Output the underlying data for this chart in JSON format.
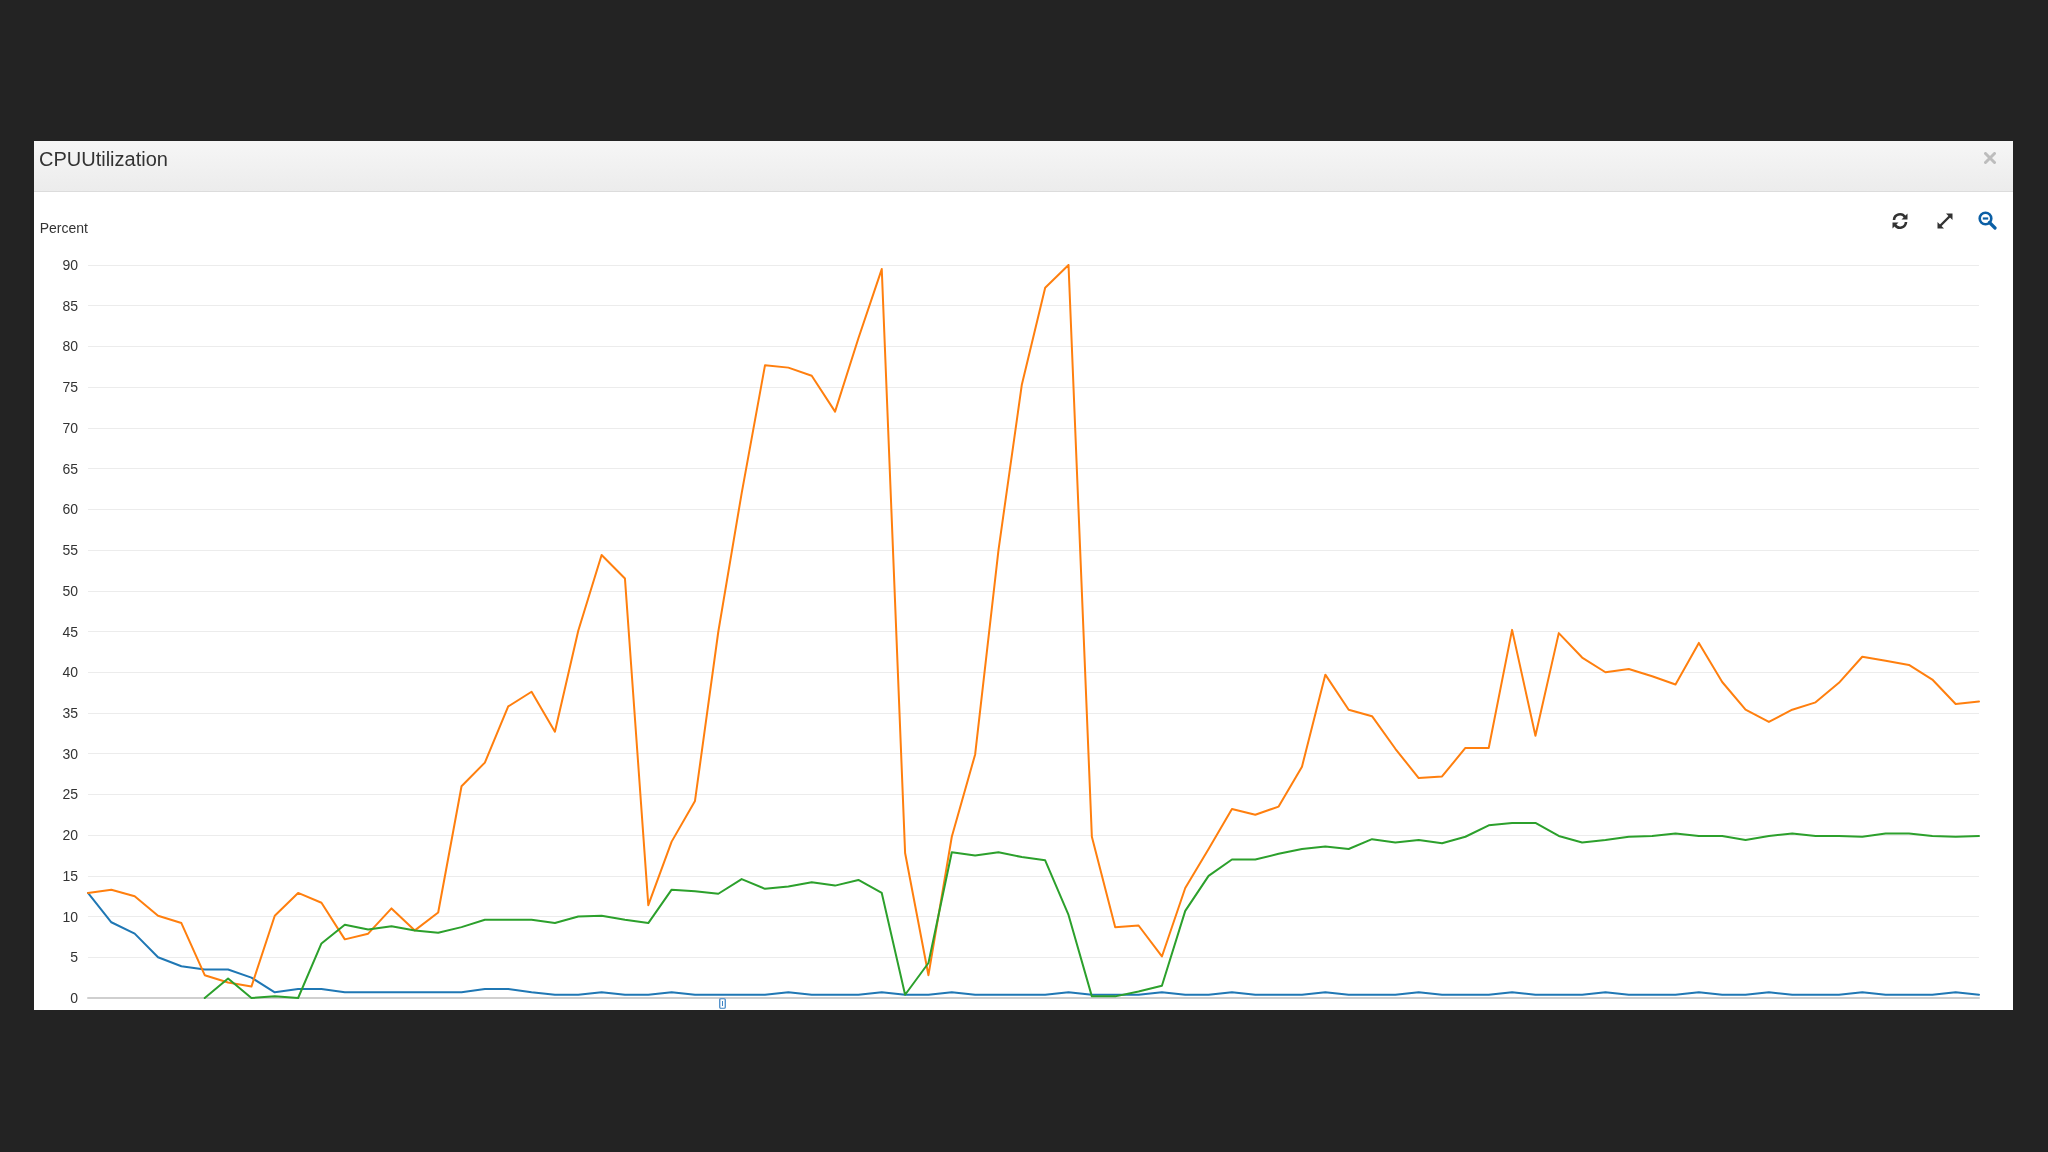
{
  "chart_data": {
    "type": "line",
    "title": "CPUUtilization",
    "ylabel": "Percent",
    "categories": [
      null,
      null,
      null,
      null,
      null,
      null,
      null,
      null,
      null,
      null,
      null,
      null,
      null,
      null,
      null,
      null,
      null,
      null,
      null,
      null,
      null,
      null,
      null,
      null,
      null,
      null,
      null,
      null,
      null,
      null,
      null,
      null,
      null,
      null,
      null,
      null,
      null,
      null,
      null,
      null,
      null,
      null,
      null,
      null,
      null,
      null,
      null,
      null,
      null,
      null,
      null,
      null,
      null,
      null,
      null,
      null,
      null,
      null,
      null,
      null,
      null,
      null,
      null,
      null,
      null,
      null,
      null,
      null,
      null,
      null,
      null,
      null,
      null,
      null,
      null,
      null,
      null,
      null,
      null,
      null,
      null,
      null
    ],
    "series": [
      {
        "color": "#1f77b4",
        "values": [
          12.9,
          9.3,
          7.9,
          5.0,
          3.9,
          3.5,
          3.5,
          2.5,
          0.7,
          1.1,
          1.1,
          0.7,
          0.7,
          0.7,
          0.7,
          0.7,
          0.7,
          1.1,
          1.1,
          0.7,
          0.4,
          0.4,
          0.7,
          0.4,
          0.4,
          0.7,
          0.4,
          0.4,
          0.4,
          0.4,
          0.7,
          0.4,
          0.4,
          0.4,
          0.7,
          0.4,
          0.4,
          0.7,
          0.4,
          0.4,
          0.4,
          0.4,
          0.7,
          0.4,
          0.4,
          0.4,
          0.7,
          0.4,
          0.4,
          0.7,
          0.4,
          0.4,
          0.4,
          0.7,
          0.4,
          0.4,
          0.4,
          0.7,
          0.4,
          0.4,
          0.4,
          0.7,
          0.4,
          0.4,
          0.4,
          0.7,
          0.4,
          0.4,
          0.4,
          0.7,
          0.4,
          0.4,
          0.7,
          0.4,
          0.4,
          0.4,
          0.7,
          0.4,
          0.4,
          0.4,
          0.7,
          0.4
        ]
      },
      {
        "color": "#ff7f0e",
        "values": [
          12.9,
          13.3,
          12.5,
          10.1,
          9.2,
          2.8,
          1.9,
          1.4,
          10.1,
          12.9,
          11.7,
          7.2,
          7.9,
          11.0,
          8.3,
          10.5,
          26.0,
          28.9,
          35.8,
          37.6,
          32.7,
          45.1,
          54.4,
          51.5,
          11.4,
          19.2,
          24.2,
          45,
          62,
          77.7,
          77.4,
          76.4,
          72.0,
          81,
          89.5,
          17.8,
          2.8,
          19.8,
          29.9,
          55,
          75.3,
          87.2,
          90,
          19.8,
          8.7,
          8.9,
          5.1,
          13.5,
          18.3,
          23.2,
          22.5,
          23.5,
          28.4,
          39.7,
          35.4,
          34.6,
          30.6,
          27.0,
          27.2,
          30.7,
          30.7,
          45.2,
          32.2,
          44.8,
          41.8,
          40.0,
          40.4,
          39.5,
          38.5,
          43.6,
          38.8,
          35.4,
          33.9,
          35.4,
          36.3,
          38.7,
          41.9,
          41.4,
          40.9,
          39.1,
          36.1,
          36.4
        ]
      },
      {
        "color": "#2ca02c",
        "values": [
          null,
          null,
          null,
          null,
          null,
          0,
          2.4,
          0,
          0.2,
          0,
          6.7,
          9.0,
          8.4,
          8.8,
          8.3,
          8.0,
          8.7,
          9.6,
          9.6,
          9.6,
          9.2,
          10.0,
          10.1,
          9.6,
          9.2,
          13.3,
          13.1,
          12.8,
          14.6,
          13.4,
          13.7,
          14.2,
          13.8,
          14.5,
          12.9,
          0.4,
          4.3,
          17.9,
          17.5,
          17.9,
          17.3,
          16.9,
          10.2,
          0.2,
          0.2,
          0.8,
          1.5,
          10.7,
          15.0,
          17.0,
          17.0,
          17.7,
          18.3,
          18.6,
          18.3,
          19.5,
          19.1,
          19.4,
          19.0,
          19.8,
          21.2,
          21.5,
          21.5,
          19.9,
          19.1,
          19.4,
          19.8,
          19.9,
          20.2,
          19.9,
          19.9,
          19.4,
          19.9,
          20.2,
          19.9,
          19.9,
          19.8,
          20.2,
          20.2,
          19.9,
          19.8,
          19.9
        ]
      }
    ],
    "ylim": [
      0,
      90
    ],
    "yticks": [
      0,
      5,
      10,
      15,
      20,
      25,
      30,
      35,
      40,
      45,
      50,
      55,
      60,
      65,
      70,
      75,
      80,
      85,
      90
    ],
    "grid": "y",
    "tick_labels": "y",
    "marker": "none",
    "line_style": "solid"
  }
}
